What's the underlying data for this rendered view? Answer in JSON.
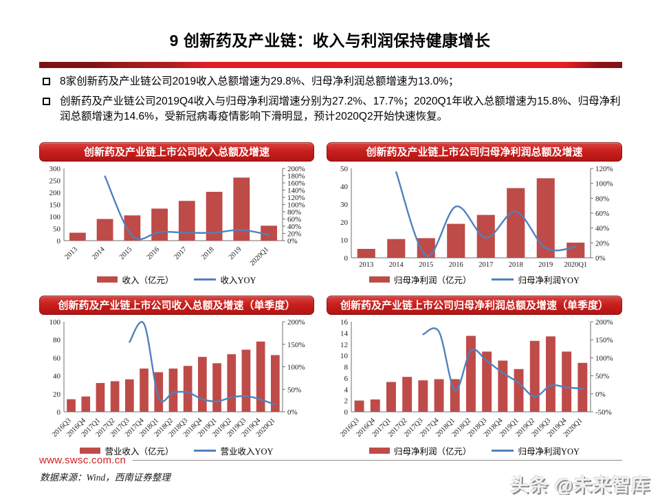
{
  "page": {
    "title": "9 创新药及产业链：收入与利润保持健康增长",
    "bullets": [
      "8家创新药及产业链公司2019收入总额增速为29.8%、归母净利润总额增速为13.0%；",
      "创新药及产业链公司2019Q4收入与归母净利润增速分别为27.2%、17.7%；2020Q1年收入总额增速为15.8%、归母净利润总额增速为14.6%，受新冠病毒疫情影响下滑明显，预计2020Q2开始快速恢复。"
    ],
    "footer": {
      "website": "www.swsc.com.cn",
      "source": "数据来源：Wind，西南证券整理",
      "watermark": "头条 @未来智库"
    },
    "colors": {
      "bar_red": "#BE4B48",
      "line_blue": "#4F81BD",
      "banner_red": "#C8201E",
      "divider_red": "#E21E22",
      "url_red": "#CF2020"
    }
  },
  "chart_data": [
    {
      "type": "bar",
      "title": "创新药及产业链上市公司收入总额及增速",
      "categories": [
        "2013",
        "2014",
        "2015",
        "2016",
        "2017",
        "2018",
        "2019",
        "2020Q1"
      ],
      "series": [
        {
          "name": "收入（亿元）",
          "type": "bar",
          "axis": "left",
          "color": "#BE4B48",
          "values": [
            33,
            90,
            105,
            133,
            165,
            203,
            262,
            62
          ]
        },
        {
          "name": "收入YOY",
          "type": "line",
          "axis": "right",
          "color": "#4F81BD",
          "values": [
            null,
            178,
            13,
            24,
            22,
            22,
            29.8,
            15.8
          ]
        }
      ],
      "left_axis": {
        "min": 0,
        "max": 300,
        "step": 50,
        "suffix": ""
      },
      "right_axis": {
        "min": 0,
        "max": 200,
        "step": 20,
        "suffix": "%"
      },
      "x_labels_rotated": true,
      "grid": false,
      "legend_position": "bottom"
    },
    {
      "type": "bar",
      "title": "创新药及产业链上市公司归母净利润总额及增速",
      "categories": [
        "2013",
        "2014",
        "2015",
        "2016",
        "2017",
        "2018",
        "2019",
        "2020Q1"
      ],
      "series": [
        {
          "name": "归母净利润（亿元）",
          "type": "bar",
          "axis": "left",
          "color": "#BE4B48",
          "values": [
            5,
            10.5,
            11,
            19,
            24,
            39,
            44.5,
            8.5
          ]
        },
        {
          "name": "归母净利润YOY",
          "type": "line",
          "axis": "right",
          "color": "#4F81BD",
          "values": [
            null,
            115,
            3,
            69,
            27,
            62,
            13,
            14.6
          ]
        }
      ],
      "left_axis": {
        "min": 0,
        "max": 50,
        "step": 10,
        "suffix": ""
      },
      "right_axis": {
        "min": 0,
        "max": 120,
        "step": 20,
        "suffix": "%"
      },
      "x_labels_rotated": false,
      "grid": false,
      "legend_position": "bottom"
    },
    {
      "type": "bar",
      "title": "创新药及产业链上市公司收入总额及增速（单季度）",
      "categories": [
        "2016Q3",
        "2016Q4",
        "2017Q1",
        "2017Q2",
        "2017Q3",
        "2017Q4",
        "2018Q1",
        "2018Q2",
        "2018Q3",
        "2018Q4",
        "2019Q1",
        "2019Q2",
        "2019Q3",
        "2019Q4",
        "2020Q1"
      ],
      "series": [
        {
          "name": "营业收入（亿元）",
          "type": "bar",
          "axis": "left",
          "color": "#BE4B48",
          "values": [
            14,
            17,
            32,
            34,
            36,
            48,
            44,
            48,
            51,
            61,
            54,
            64,
            69,
            78,
            63
          ]
        },
        {
          "name": "营业收入YOY",
          "type": "line",
          "axis": "right",
          "color": "#4F81BD",
          "values": [
            null,
            null,
            null,
            null,
            155,
            195,
            32,
            43,
            43,
            28,
            23,
            32,
            35,
            27.2,
            15.8
          ]
        }
      ],
      "left_axis": {
        "min": 0,
        "max": 100,
        "step": 20,
        "suffix": ""
      },
      "right_axis": {
        "min": 0,
        "max": 200,
        "step": 50,
        "suffix": "%"
      },
      "x_labels_rotated": true,
      "grid": false,
      "legend_position": "bottom"
    },
    {
      "type": "bar",
      "title": "创新药及产业链上市公司归母净利润总额及增速（单季度）",
      "categories": [
        "2016Q3",
        "2016Q4",
        "2017Q1",
        "2017Q2",
        "2017Q3",
        "2017Q4",
        "2018Q1",
        "2018Q2",
        "2018Q3",
        "2018Q4",
        "2019Q1",
        "2019Q2",
        "2019Q3",
        "2019Q4",
        "2020Q1"
      ],
      "series": [
        {
          "name": "归母净利润（亿元）",
          "type": "bar",
          "axis": "left",
          "color": "#BE4B48",
          "values": [
            2,
            2.2,
            5.3,
            6.2,
            5.6,
            5.8,
            5.8,
            13.5,
            10.7,
            9.1,
            7.6,
            12.6,
            13.4,
            10.7,
            8.7
          ]
        },
        {
          "name": "归母净利润YOY",
          "type": "line",
          "axis": "right",
          "color": "#4F81BD",
          "values": [
            null,
            null,
            null,
            null,
            165,
            172,
            10,
            120,
            91,
            58,
            30,
            -8,
            23,
            17.7,
            14.6
          ]
        }
      ],
      "left_axis": {
        "min": 0,
        "max": 16,
        "step": 2,
        "suffix": ""
      },
      "right_axis": {
        "min": -50,
        "max": 200,
        "step": 50,
        "suffix": "%"
      },
      "x_labels_rotated": true,
      "grid": false,
      "legend_position": "bottom"
    }
  ]
}
